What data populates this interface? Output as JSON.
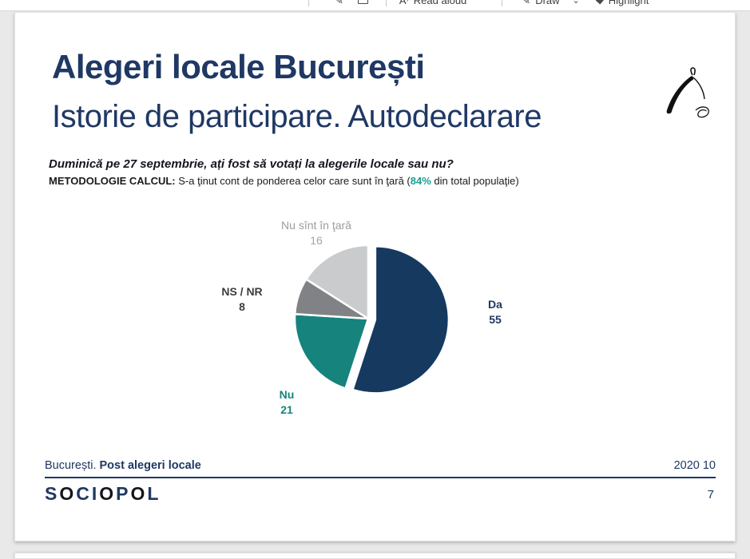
{
  "toolbar": {
    "read_aloud_label": "Read aloud",
    "draw_label": "Draw",
    "highlight_label": "Highlight"
  },
  "slide": {
    "title": "Alegeri locale București",
    "subtitle": "Istorie de participare. Autodeclarare",
    "question": "Duminică pe 27 septembrie, ați fost să votați la alegerile locale sau nu?",
    "methodology": {
      "label": "METODOLOGIE CALCUL:",
      "text_before": " S-a ţinut cont de ponderea celor care sunt în ţară (",
      "highlight": "84%",
      "text_after": " din total populaţie)"
    },
    "footer": {
      "left_regular": "București. ",
      "left_bold": "Post alegeri locale",
      "right": "2020 10",
      "page_number": "7"
    },
    "logo_letters": [
      "S",
      "O",
      "C",
      "I",
      "O",
      "P",
      "O",
      "L"
    ]
  },
  "chart_data": {
    "type": "pie",
    "title": "Duminică pe 27 septembrie, ați fost să votați la alegerile locale sau nu?",
    "unit": "percent",
    "start_angle_deg": -90,
    "direction": "clockwise",
    "slices": [
      {
        "label": "Da",
        "value": 55,
        "color": "#16395f",
        "label_color": "#1f3864",
        "exploded": true
      },
      {
        "label": "Nu",
        "value": 21,
        "color": "#16837d",
        "label_color": "#17837d",
        "exploded": false
      },
      {
        "label": "NS / NR",
        "value": 8,
        "color": "#808285",
        "label_color": "#3d3d3d",
        "exploded": false
      },
      {
        "label": "Nu sînt în ţară",
        "value": 16,
        "color": "#c9cbcc",
        "label_color": "#9c9c9c",
        "exploded": false
      }
    ]
  },
  "colors": {
    "navy": "#1f3864",
    "teal": "#17837d",
    "highlight_teal": "#1d9e94",
    "gray_dark": "#808285",
    "gray_light": "#c9cbcc",
    "app_bg": "#e9e9e9",
    "page_bg": "#ffffff"
  }
}
